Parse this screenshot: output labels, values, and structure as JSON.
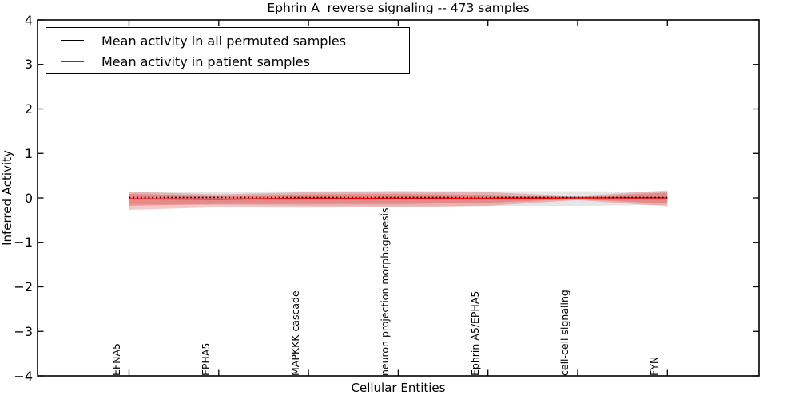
{
  "chart_data": {
    "type": "line",
    "title": "Ephrin A  reverse signaling -- 473 samples",
    "xlabel": "Cellular Entities",
    "ylabel": "Inferred Activity",
    "ylim": [
      -4,
      4
    ],
    "yticks": [
      4,
      3,
      2,
      1,
      0,
      -1,
      -2,
      -3,
      -4
    ],
    "ytick_labels": [
      "4",
      "3",
      "2",
      "1",
      "0",
      "−1",
      "−2",
      "−3",
      "−4"
    ],
    "categories": [
      "EFNA5",
      "EPHA5",
      "MAPKKK cascade",
      "neuron projection morphogenesis",
      "Ephrin A5/EPHA5",
      "cell-cell signaling",
      "FYN"
    ],
    "grid": false,
    "legend_position": "upper left",
    "series": [
      {
        "name": "Mean activity in all permuted samples",
        "color": "#000000",
        "line_style": "dotted",
        "values": [
          0.01,
          0.01,
          0.01,
          0.01,
          0.01,
          0.01,
          0.01
        ]
      },
      {
        "name": "Mean activity in patient samples",
        "color": "#ff0000",
        "line_style": "solid",
        "values": [
          -0.02,
          -0.03,
          -0.01,
          -0.01,
          -0.01,
          0.0,
          0.0
        ]
      }
    ],
    "bands": [
      {
        "name": "permuted-samples-std-band",
        "color": "#999999",
        "opacity": 0.25,
        "upper": [
          0.13,
          0.14,
          0.15,
          0.155,
          0.15,
          0.15,
          0.14
        ],
        "lower": [
          -0.14,
          -0.16,
          -0.18,
          -0.19,
          -0.18,
          -0.18,
          -0.16
        ]
      },
      {
        "name": "patient-samples-std-band-outer",
        "color": "#e03030",
        "opacity": 0.27,
        "upper": [
          0.14,
          0.08,
          0.13,
          0.15,
          0.13,
          0.04,
          0.17
        ],
        "lower": [
          -0.27,
          -0.21,
          -0.22,
          -0.21,
          -0.18,
          -0.05,
          -0.19
        ]
      },
      {
        "name": "patient-samples-std-band-inner",
        "color": "#e03030",
        "opacity": 0.3,
        "upper": [
          0.09,
          0.05,
          0.08,
          0.09,
          0.07,
          0.02,
          0.12
        ],
        "lower": [
          -0.18,
          -0.14,
          -0.14,
          -0.14,
          -0.11,
          -0.03,
          -0.13
        ]
      }
    ]
  }
}
